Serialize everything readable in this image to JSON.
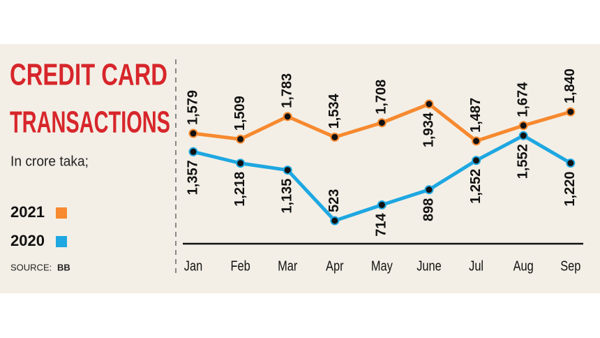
{
  "chart_data": {
    "type": "line",
    "title_lines": [
      "CREDIT CARD",
      "TRANSACTIONS"
    ],
    "subtitle": "In crore taka;",
    "source_label": "SOURCE:",
    "source": "BB",
    "categories": [
      "Jan",
      "Feb",
      "Mar",
      "Apr",
      "May",
      "June",
      "Jul",
      "Aug",
      "Sep"
    ],
    "series": [
      {
        "name": "2021",
        "color": "#f7892f",
        "values": [
          1579,
          1509,
          1783,
          1534,
          1708,
          1934,
          1487,
          1674,
          1840
        ],
        "value_labels": [
          "1,579",
          "1,509",
          "1,783",
          "1,534",
          "1,708",
          "1,934",
          "1,487",
          "1,674",
          "1,840"
        ]
      },
      {
        "name": "2020",
        "color": "#1ea7e1",
        "values": [
          1357,
          1218,
          1135,
          523,
          714,
          898,
          1252,
          1552,
          1220
        ],
        "value_labels": [
          "1,357",
          "1,218",
          "1,135",
          "523",
          "714",
          "898",
          "1,252",
          "1,552",
          "1,220"
        ]
      }
    ]
  }
}
